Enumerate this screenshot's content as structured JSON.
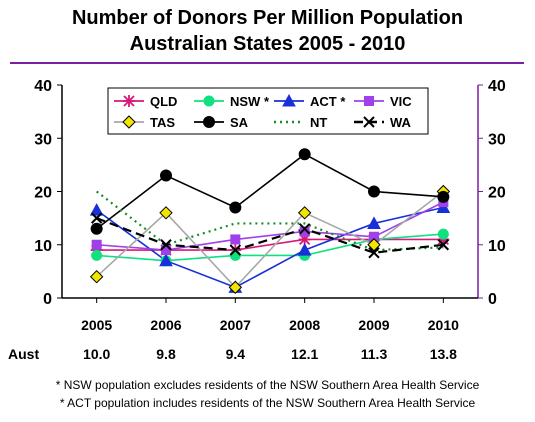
{
  "header": {
    "title_line1": "Number of Donors Per Million Population",
    "title_line2": "Australian States  2005 - 2010"
  },
  "chart_data": {
    "type": "line",
    "x": [
      "2005",
      "2006",
      "2007",
      "2008",
      "2009",
      "2010"
    ],
    "ylim": [
      0,
      40
    ],
    "yticks": [
      0,
      10,
      20,
      30,
      40
    ],
    "right_axis": true,
    "grid": false,
    "legend": "top-inside",
    "aust_label": "Aust",
    "aust_values": [
      "10.0",
      "9.8",
      "9.4",
      "12.1",
      "11.3",
      "13.8"
    ],
    "series": [
      {
        "name": "QLD",
        "values": [
          9,
          9,
          9,
          11,
          11,
          11
        ],
        "color": "#d6187a",
        "marker": "star",
        "dash": "solid"
      },
      {
        "name": "NSW *",
        "values": [
          8,
          7,
          8,
          8,
          11,
          12
        ],
        "color": "#10e080",
        "marker": "circle",
        "dash": "solid"
      },
      {
        "name": "ACT *",
        "values": [
          16.5,
          7,
          2,
          9,
          14,
          17
        ],
        "color": "#1830d8",
        "marker": "triangle",
        "dash": "solid"
      },
      {
        "name": "VIC",
        "values": [
          10,
          9,
          11,
          12.5,
          11.5,
          18
        ],
        "color": "#a040e8",
        "marker": "square",
        "dash": "solid"
      },
      {
        "name": "TAS",
        "values": [
          4,
          16,
          2,
          16,
          10,
          20
        ],
        "color": "#a8a8a8",
        "marker": "diamond",
        "dash": "solid"
      },
      {
        "name": "SA",
        "values": [
          13,
          23,
          17,
          27,
          20,
          19
        ],
        "color": "#000000",
        "marker": "circle-black",
        "dash": "solid"
      },
      {
        "name": "NT",
        "values": [
          20,
          10,
          14,
          14,
          9,
          9.5
        ],
        "color": "#1a8a2a",
        "marker": "none",
        "dash": "dotted"
      },
      {
        "name": "WA",
        "values": [
          15,
          10,
          9,
          13,
          8.5,
          10
        ],
        "color": "#000000",
        "marker": "x",
        "dash": "dashed"
      }
    ]
  },
  "footnotes": {
    "line1": "* NSW population excludes residents of the NSW Southern Area Health Service",
    "line2": "* ACT population includes residents of the NSW Southern Area Health Service"
  }
}
